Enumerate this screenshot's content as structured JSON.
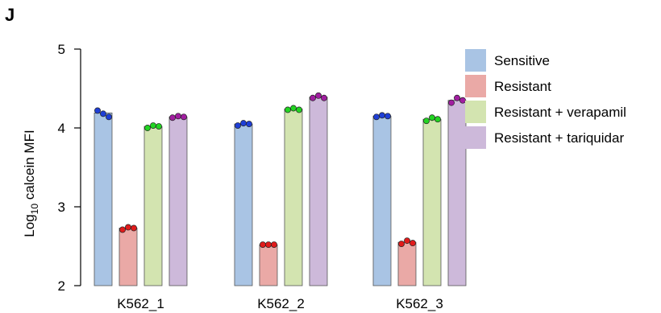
{
  "panel_label": "J",
  "chart_data": {
    "type": "bar",
    "title": "",
    "ylabel": {
      "prefix": "Log",
      "subscript": "10",
      "suffix": " calcein MFI"
    },
    "xlabel": "",
    "ylim": [
      2,
      5
    ],
    "yticks": [
      "2",
      "3",
      "4",
      "5"
    ],
    "categories": [
      "K562_1",
      "K562_2",
      "K562_3"
    ],
    "legend_position": "top-right",
    "series": [
      {
        "name": "Sensitive",
        "fill": "#a9c4e4",
        "dot": "#1f3fd6",
        "values": [
          4.19,
          4.05,
          4.15
        ],
        "points": [
          [
            4.22,
            4.18,
            4.14
          ],
          [
            4.03,
            4.06,
            4.05
          ],
          [
            4.14,
            4.16,
            4.15
          ]
        ]
      },
      {
        "name": "Resistant",
        "fill": "#eaa9a6",
        "dot": "#e01b1b",
        "values": [
          2.73,
          2.52,
          2.55
        ],
        "points": [
          [
            2.71,
            2.74,
            2.73
          ],
          [
            2.52,
            2.52,
            2.52
          ],
          [
            2.53,
            2.57,
            2.54
          ]
        ]
      },
      {
        "name": "Resistant + verapamil",
        "fill": "#d3e4b0",
        "dot": "#22d422",
        "values": [
          4.02,
          4.24,
          4.11
        ],
        "points": [
          [
            4.0,
            4.03,
            4.02
          ],
          [
            4.23,
            4.25,
            4.23
          ],
          [
            4.09,
            4.13,
            4.11
          ]
        ]
      },
      {
        "name": "Resistant + tariquidar",
        "fill": "#cdb9da",
        "dot": "#a11ea0",
        "values": [
          4.14,
          4.39,
          4.35
        ],
        "points": [
          [
            4.13,
            4.15,
            4.14
          ],
          [
            4.38,
            4.41,
            4.38
          ],
          [
            4.32,
            4.38,
            4.35
          ]
        ]
      }
    ]
  }
}
